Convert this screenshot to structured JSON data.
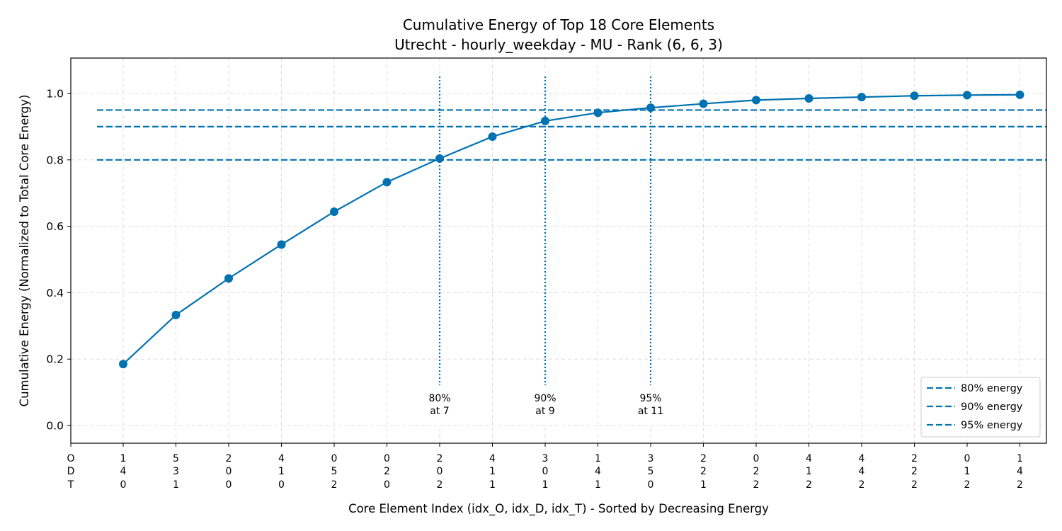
{
  "chart_data": {
    "type": "line",
    "title": "Cumulative Energy of Top 18 Core Elements",
    "subtitle": "Utrecht - hourly_weekday - MU - Rank (6, 6, 3)",
    "xlabel": "Core Element Index (idx_O, idx_D, idx_T) - Sorted by Decreasing Energy",
    "ylabel": "Cumulative Energy (Normalized to Total Core Energy)",
    "ylim": [
      -0.05,
      1.1
    ],
    "yticks": [
      0.0,
      0.2,
      0.4,
      0.6,
      0.8,
      1.0
    ],
    "ytick_labels": [
      "0.0",
      "0.2",
      "0.4",
      "0.6",
      "0.8",
      "1.0"
    ],
    "grid": true,
    "line_color": "#0072b2",
    "row_labels": [
      "O",
      "D",
      "T"
    ],
    "categories": [
      [
        "1",
        "4",
        "0"
      ],
      [
        "5",
        "3",
        "1"
      ],
      [
        "2",
        "0",
        "0"
      ],
      [
        "4",
        "1",
        "0"
      ],
      [
        "0",
        "5",
        "2"
      ],
      [
        "0",
        "2",
        "0"
      ],
      [
        "2",
        "0",
        "2"
      ],
      [
        "4",
        "1",
        "1"
      ],
      [
        "3",
        "0",
        "1"
      ],
      [
        "1",
        "4",
        "1"
      ],
      [
        "3",
        "5",
        "0"
      ],
      [
        "2",
        "2",
        "1"
      ],
      [
        "0",
        "2",
        "2"
      ],
      [
        "4",
        "1",
        "2"
      ],
      [
        "4",
        "4",
        "2"
      ],
      [
        "2",
        "2",
        "2"
      ],
      [
        "0",
        "1",
        "2"
      ],
      [
        "1",
        "4",
        "2"
      ]
    ],
    "series": [
      {
        "values": [
          0.185,
          0.333,
          0.443,
          0.545,
          0.644,
          0.733,
          0.804,
          0.87,
          0.917,
          0.942,
          0.957,
          0.969,
          0.98,
          0.985,
          0.989,
          0.993,
          0.995,
          0.996
        ]
      }
    ],
    "thresholds": [
      {
        "value": 0.8,
        "label": "80% energy",
        "annotation": [
          "80%",
          "at 7"
        ],
        "index": 7
      },
      {
        "value": 0.9,
        "label": "90% energy",
        "annotation": [
          "90%",
          "at 9"
        ],
        "index": 9
      },
      {
        "value": 0.95,
        "label": "95% energy",
        "annotation": [
          "95%",
          "at 11"
        ],
        "index": 11
      }
    ],
    "legend_position": "bottom-right"
  }
}
